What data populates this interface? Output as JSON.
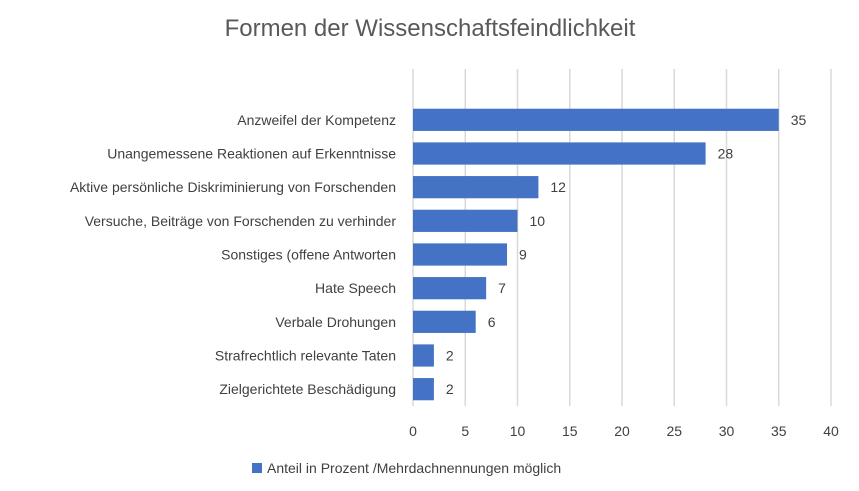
{
  "chart_data": {
    "type": "bar",
    "orientation": "horizontal",
    "title": "Formen der Wissenschaftsfeindlichkeit",
    "categories": [
      "Anzweifel der Kompetenz",
      "Unangemessene Reaktionen auf Erkenntnisse",
      "Aktive persönliche Diskriminierung von Forschenden",
      "Versuche, Beiträge von Forschenden zu verhinder",
      "Sonstiges (offene Antworten",
      "Hate Speech",
      "Verbale Drohungen",
      "Strafrechtlich relevante Taten",
      "Zielgerichtete Beschädigung"
    ],
    "series": [
      {
        "name": "Anteil in Prozent /Mehrdachnennungen möglich",
        "values": [
          35,
          28,
          12,
          10,
          9,
          7,
          6,
          2,
          2
        ],
        "color": "#4472c4"
      }
    ],
    "xlim": [
      0,
      40
    ],
    "xticks": [
      "0",
      "5",
      "10",
      "15",
      "20",
      "25",
      "30",
      "35",
      "40"
    ],
    "grid": "vertical",
    "legend_position": "bottom",
    "data_labels": true
  }
}
